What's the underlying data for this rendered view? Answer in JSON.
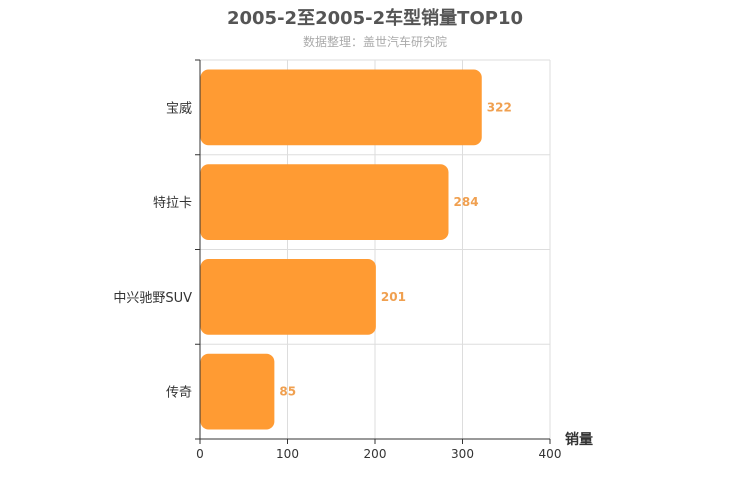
{
  "chart_data": {
    "type": "bar",
    "orientation": "horizontal",
    "title": "2005-2至2005-2车型销量TOP10",
    "subtitle": "数据整理：盖世汽车研究院",
    "xlabel": "销量",
    "ylabel": "",
    "categories": [
      "宝威",
      "特拉卡",
      "中兴驰野SUV",
      "传奇"
    ],
    "values": [
      322,
      284,
      201,
      85
    ],
    "xlim": [
      0,
      400
    ],
    "xticks": [
      "0",
      "100",
      "200",
      "300",
      "400"
    ],
    "grid": true,
    "bar_color": "#ff9b33",
    "label_color": "#f0a050"
  }
}
